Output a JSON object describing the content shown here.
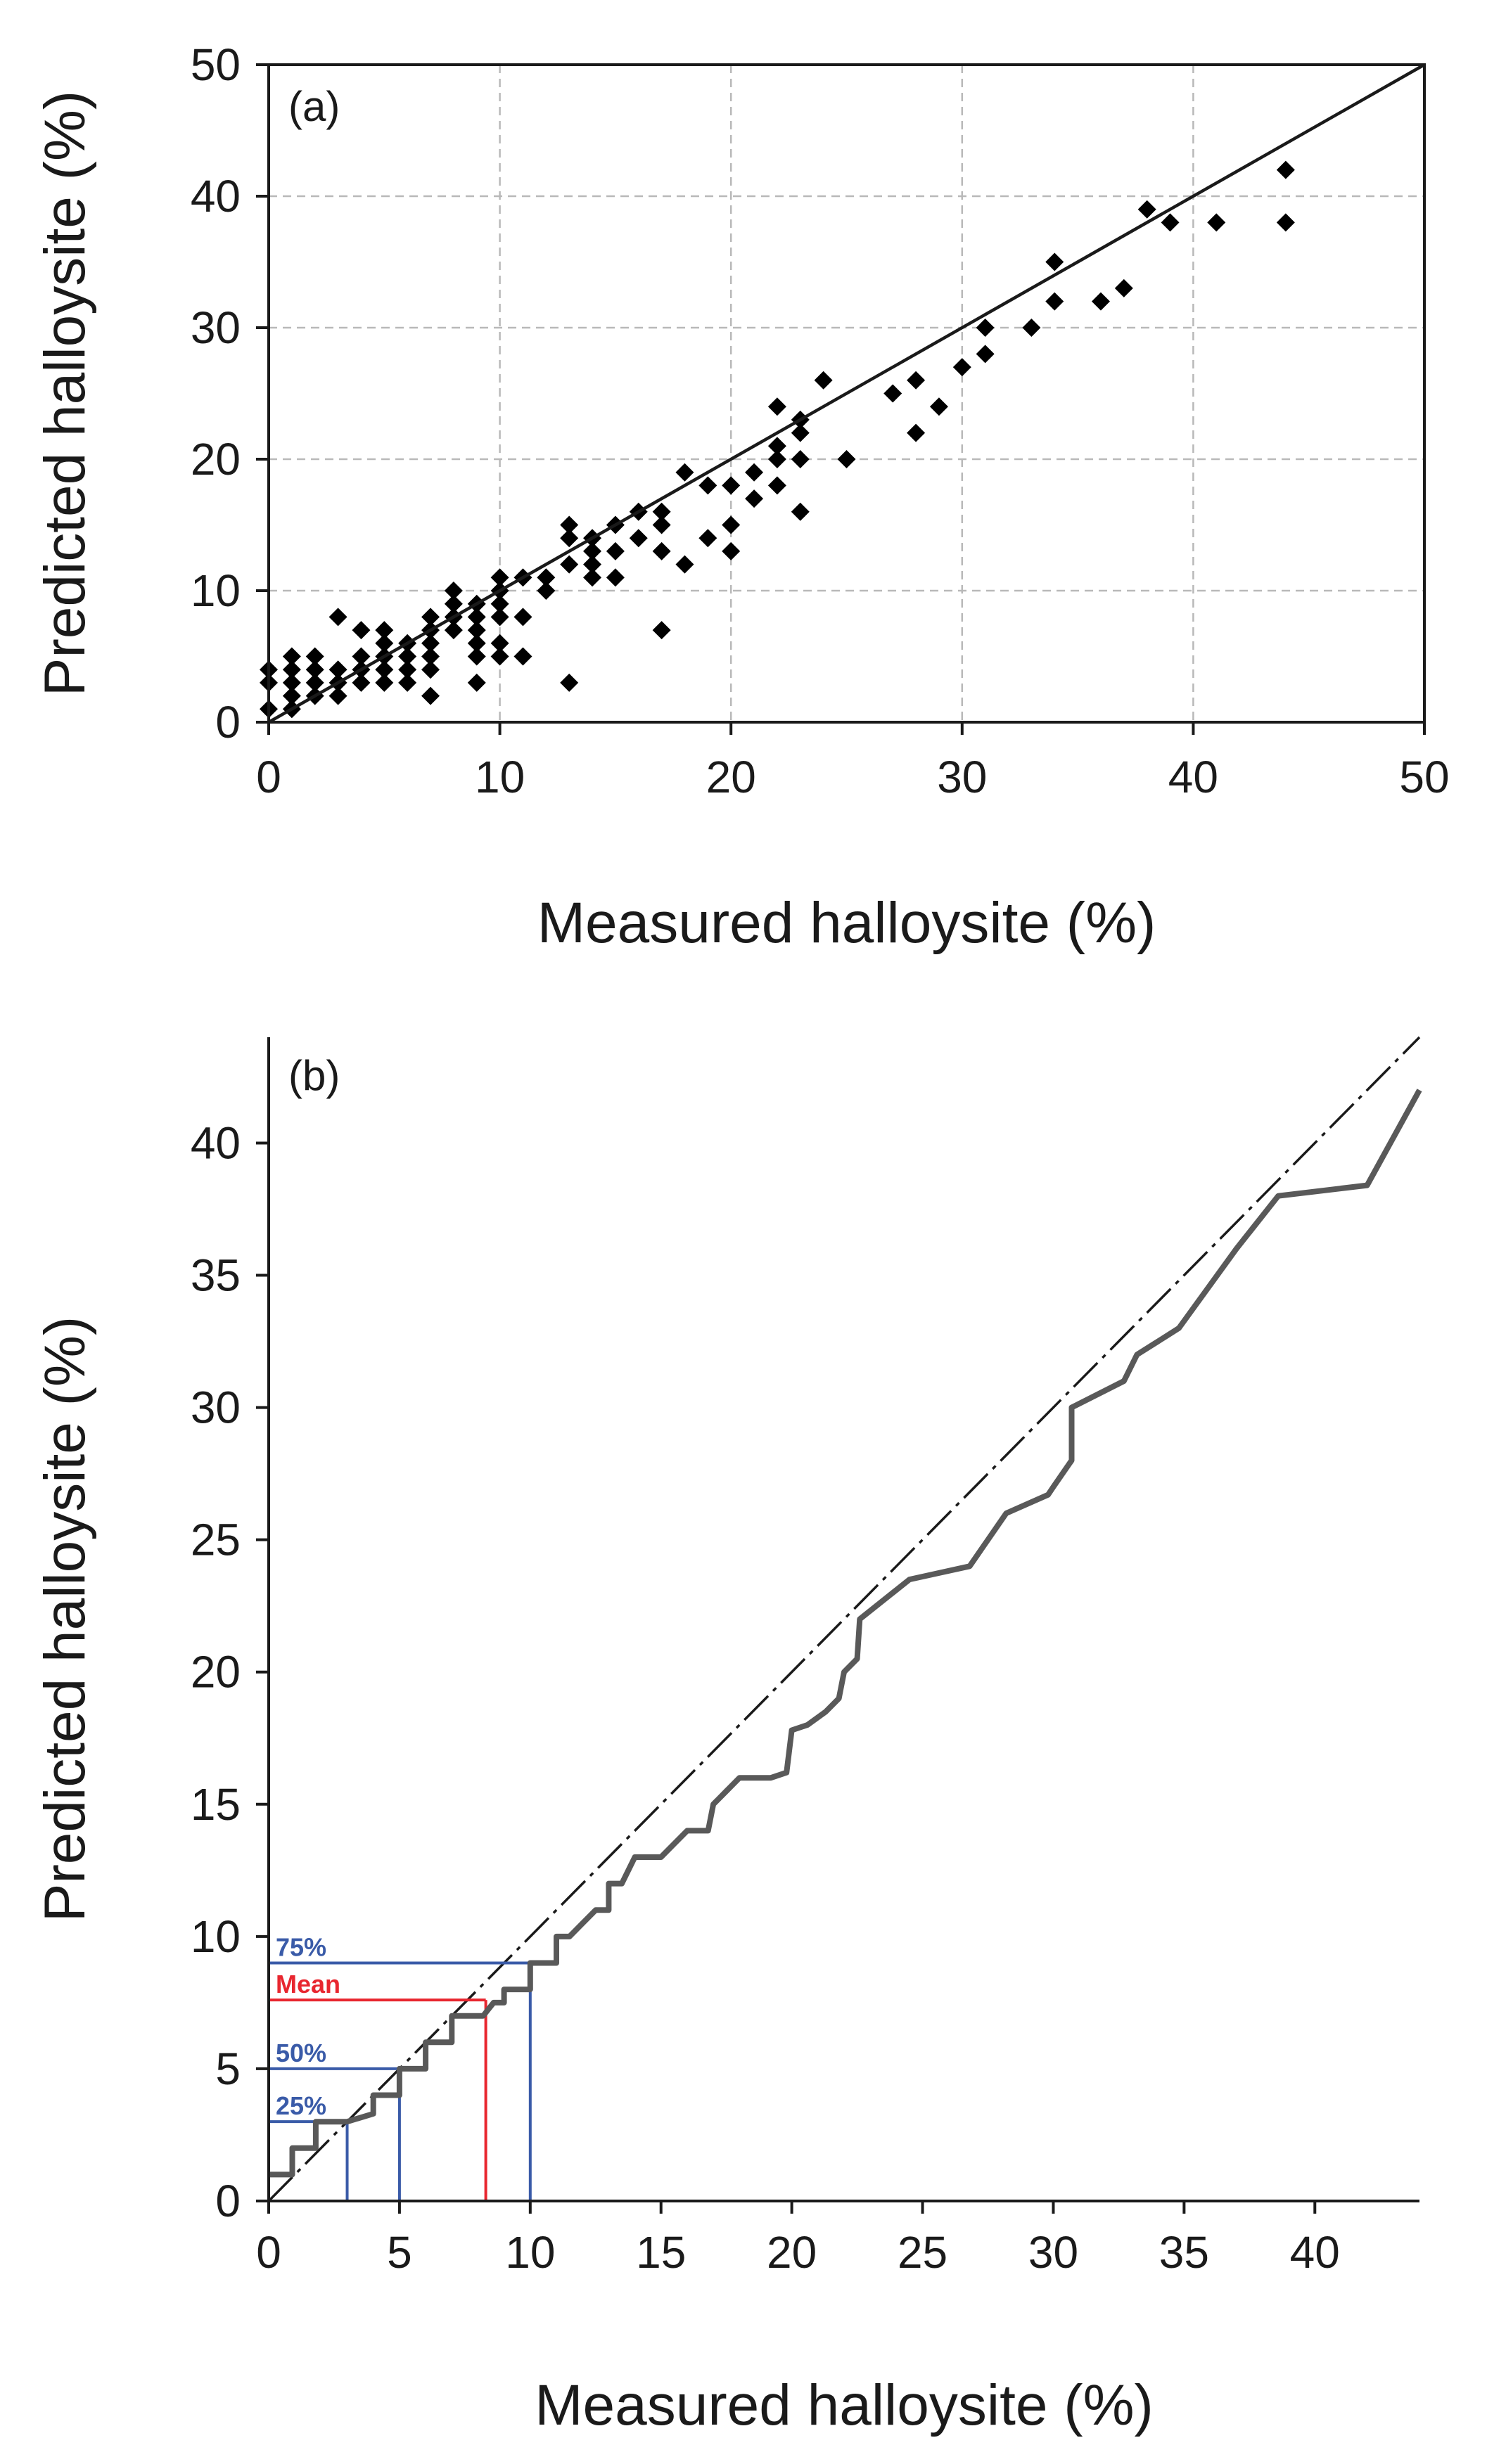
{
  "chart_data": [
    {
      "type": "scatter",
      "panel_label": "(a)",
      "xlabel": "Measured halloysite (%)",
      "ylabel": "Predicted halloysite (%)",
      "xlim": [
        0,
        50
      ],
      "ylim": [
        0,
        50
      ],
      "xticks": [
        "0",
        "10",
        "20",
        "30",
        "40",
        "50"
      ],
      "yticks": [
        "0",
        "10",
        "20",
        "30",
        "40",
        "50"
      ],
      "grid": true,
      "reference_line": "1:1 line",
      "marker": "diamond",
      "marker_color": "#000000",
      "points": [
        [
          0,
          1
        ],
        [
          0,
          3
        ],
        [
          0,
          4
        ],
        [
          1,
          1
        ],
        [
          1,
          2
        ],
        [
          1,
          3
        ],
        [
          1,
          4
        ],
        [
          1,
          5
        ],
        [
          2,
          2
        ],
        [
          2,
          3
        ],
        [
          2,
          4
        ],
        [
          2,
          5
        ],
        [
          3,
          2
        ],
        [
          3,
          3
        ],
        [
          3,
          4
        ],
        [
          3,
          8
        ],
        [
          4,
          3
        ],
        [
          4,
          4
        ],
        [
          4,
          5
        ],
        [
          4,
          7
        ],
        [
          5,
          3
        ],
        [
          5,
          4
        ],
        [
          5,
          5
        ],
        [
          5,
          6
        ],
        [
          5,
          7
        ],
        [
          6,
          3
        ],
        [
          6,
          4
        ],
        [
          6,
          5
        ],
        [
          6,
          6
        ],
        [
          7,
          2
        ],
        [
          7,
          4
        ],
        [
          7,
          5
        ],
        [
          7,
          6
        ],
        [
          7,
          7
        ],
        [
          7,
          8
        ],
        [
          8,
          7
        ],
        [
          8,
          8
        ],
        [
          8,
          9
        ],
        [
          8,
          10
        ],
        [
          9,
          3
        ],
        [
          9,
          5
        ],
        [
          9,
          6
        ],
        [
          9,
          7
        ],
        [
          9,
          8
        ],
        [
          9,
          9
        ],
        [
          10,
          5
        ],
        [
          10,
          6
        ],
        [
          10,
          8
        ],
        [
          10,
          9
        ],
        [
          10,
          10
        ],
        [
          10,
          11
        ],
        [
          11,
          5
        ],
        [
          11,
          8
        ],
        [
          11,
          11
        ],
        [
          12,
          10
        ],
        [
          12,
          11
        ],
        [
          13,
          3
        ],
        [
          13,
          12
        ],
        [
          13,
          14
        ],
        [
          13,
          15
        ],
        [
          14,
          11
        ],
        [
          14,
          12
        ],
        [
          14,
          13
        ],
        [
          14,
          14
        ],
        [
          15,
          11
        ],
        [
          15,
          13
        ],
        [
          15,
          15
        ],
        [
          16,
          14
        ],
        [
          16,
          16
        ],
        [
          17,
          7
        ],
        [
          17,
          13
        ],
        [
          17,
          15
        ],
        [
          17,
          16
        ],
        [
          18,
          12
        ],
        [
          18,
          19
        ],
        [
          19,
          14
        ],
        [
          19,
          18
        ],
        [
          20,
          13
        ],
        [
          20,
          15
        ],
        [
          20,
          18
        ],
        [
          21,
          17
        ],
        [
          21,
          19
        ],
        [
          22,
          18
        ],
        [
          22,
          20
        ],
        [
          22,
          21
        ],
        [
          22,
          24
        ],
        [
          23,
          16
        ],
        [
          23,
          20
        ],
        [
          23,
          22
        ],
        [
          23,
          23
        ],
        [
          24,
          26
        ],
        [
          25,
          20
        ],
        [
          27,
          25
        ],
        [
          28,
          22
        ],
        [
          28,
          26
        ],
        [
          29,
          24
        ],
        [
          30,
          27
        ],
        [
          31,
          28
        ],
        [
          31,
          30
        ],
        [
          33,
          30
        ],
        [
          34,
          32
        ],
        [
          34,
          35
        ],
        [
          36,
          32
        ],
        [
          37,
          33
        ],
        [
          38,
          39
        ],
        [
          39,
          38
        ],
        [
          41,
          38
        ],
        [
          44,
          38
        ],
        [
          44,
          42
        ]
      ]
    },
    {
      "type": "line",
      "panel_label": "(b)",
      "xlabel": "Measured halloysite (%)",
      "ylabel": "Predicted halloysite (%)",
      "xlim": [
        0,
        44
      ],
      "ylim": [
        0,
        44
      ],
      "xticks": [
        "0",
        "5",
        "10",
        "15",
        "20",
        "25",
        "30",
        "35",
        "40"
      ],
      "yticks": [
        "0",
        "5",
        "10",
        "15",
        "20",
        "25",
        "30",
        "35",
        "40"
      ],
      "grid": false,
      "reference_line": "1:1 dashed line",
      "series": [
        {
          "name": "Quantile curve",
          "color": "#595959",
          "points": [
            [
              0,
              1
            ],
            [
              0.9,
              1
            ],
            [
              0.9,
              2
            ],
            [
              1.8,
              2
            ],
            [
              1.8,
              3
            ],
            [
              3,
              3
            ],
            [
              4,
              3.3
            ],
            [
              4,
              4
            ],
            [
              5,
              4
            ],
            [
              5,
              5
            ],
            [
              6,
              5
            ],
            [
              6,
              6
            ],
            [
              7,
              6
            ],
            [
              7,
              7
            ],
            [
              8.2,
              7
            ],
            [
              8.6,
              7.5
            ],
            [
              9,
              7.5
            ],
            [
              9,
              8
            ],
            [
              10,
              8
            ],
            [
              10,
              9
            ],
            [
              11,
              9
            ],
            [
              11,
              10
            ],
            [
              11.5,
              10
            ],
            [
              12,
              10.5
            ],
            [
              12.5,
              11
            ],
            [
              13,
              11
            ],
            [
              13,
              12
            ],
            [
              13.5,
              12
            ],
            [
              14,
              13
            ],
            [
              15,
              13
            ],
            [
              15.5,
              13.5
            ],
            [
              16,
              14
            ],
            [
              16.8,
              14
            ],
            [
              17,
              15
            ],
            [
              17.5,
              15.5
            ],
            [
              18,
              16
            ],
            [
              19.2,
              16
            ],
            [
              19.8,
              16.2
            ],
            [
              20,
              17.8
            ],
            [
              20.6,
              18
            ],
            [
              21.3,
              18.5
            ],
            [
              21.8,
              19
            ],
            [
              22,
              20
            ],
            [
              22.5,
              20.5
            ],
            [
              22.6,
              22
            ],
            [
              24.5,
              23.5
            ],
            [
              26.8,
              24
            ],
            [
              28.2,
              26
            ],
            [
              29.8,
              26.7
            ],
            [
              30,
              27
            ],
            [
              30.7,
              28
            ],
            [
              30.7,
              30
            ],
            [
              32.7,
              31
            ],
            [
              33.2,
              32
            ],
            [
              34,
              32.5
            ],
            [
              34.8,
              33
            ],
            [
              37,
              36
            ],
            [
              38.6,
              38
            ],
            [
              42,
              38.4
            ],
            [
              44,
              42
            ]
          ]
        }
      ],
      "quantile_markers": [
        {
          "label": "75%",
          "x": 10,
          "y": 9,
          "color": "#3a5ba8"
        },
        {
          "label": "Mean",
          "x": 8.3,
          "y": 7.6,
          "color": "#e8262f"
        },
        {
          "label": "50%",
          "x": 5,
          "y": 5,
          "color": "#3a5ba8"
        },
        {
          "label": "25%",
          "x": 3,
          "y": 3,
          "color": "#3a5ba8"
        }
      ]
    }
  ]
}
